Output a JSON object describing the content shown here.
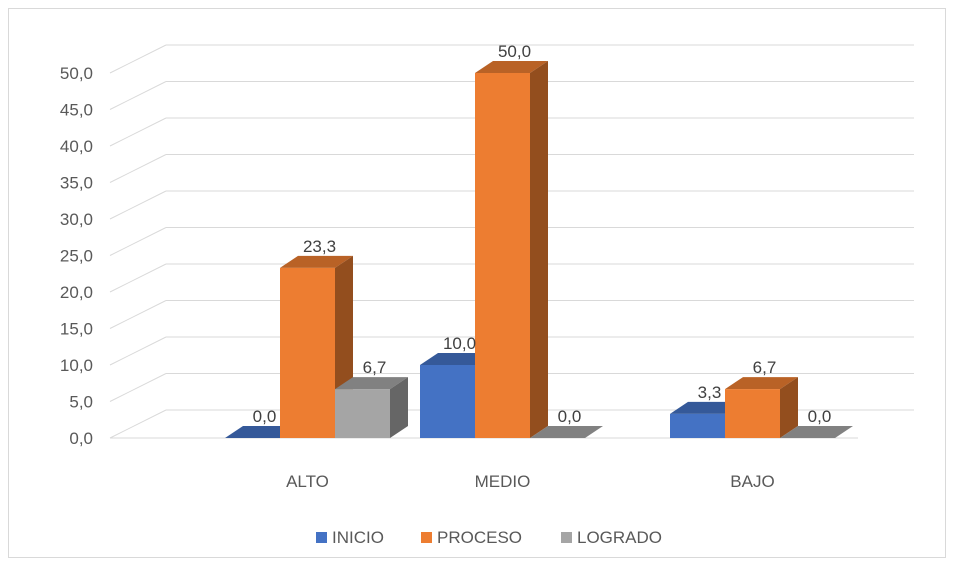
{
  "chart_data": {
    "type": "bar",
    "title": "",
    "xlabel": "",
    "ylabel": "",
    "categories": [
      "ALTO",
      "MEDIO",
      "BAJO"
    ],
    "ylim": [
      0,
      50
    ],
    "yticks": [
      "0,0",
      "5,0",
      "10,0",
      "15,0",
      "20,0",
      "25,0",
      "30,0",
      "35,0",
      "40,0",
      "45,0",
      "50,0"
    ],
    "series": [
      {
        "name": "INICIO",
        "color": "#4472c4",
        "values": [
          0.0,
          10.0,
          3.3
        ],
        "labels": [
          "0,0",
          "10,0",
          "3,3"
        ]
      },
      {
        "name": "PROCESO",
        "color": "#ed7d31",
        "values": [
          23.3,
          50.0,
          6.7
        ],
        "labels": [
          "23,3",
          "50,0",
          "6,7"
        ]
      },
      {
        "name": "LOGRADO",
        "color": "#a5a5a5",
        "values": [
          6.7,
          0.0,
          0.0
        ],
        "labels": [
          "6,7",
          "0,0",
          "0,0"
        ]
      }
    ],
    "grid": true,
    "legend": "bottom",
    "style": "3d-clustered-column"
  }
}
